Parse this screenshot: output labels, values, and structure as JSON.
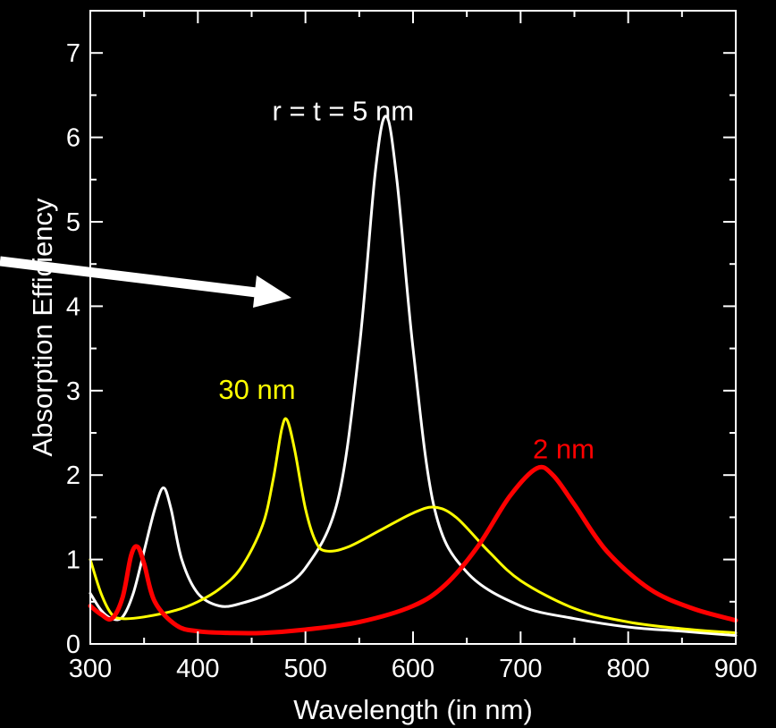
{
  "chart_data": {
    "type": "line",
    "xlabel": "Wavelength (in nm)",
    "ylabel": "Absorption Efficiency",
    "xlim": [
      300,
      900
    ],
    "ylim": [
      0,
      7.5
    ],
    "x_ticks": [
      300,
      400,
      500,
      600,
      700,
      800,
      900
    ],
    "x_tick_labels": [
      "300",
      "400",
      "500",
      "600",
      "700",
      "800",
      "900"
    ],
    "y_ticks": [
      0,
      1,
      2,
      3,
      4,
      5,
      6,
      7
    ],
    "y_tick_labels": [
      "0",
      "1",
      "2",
      "3",
      "4",
      "5",
      "6",
      "7"
    ],
    "grid": false,
    "background": "#000000",
    "annotations": [
      {
        "text": "r = t = 5 nm",
        "color": "#ffffff",
        "x": 535,
        "y": 6.2
      },
      {
        "text": "30 nm",
        "color": "#ffff00",
        "x": 455,
        "y": 2.9
      },
      {
        "text": "2 nm",
        "color": "#ff0000",
        "x": 740,
        "y": 2.2
      }
    ],
    "series": [
      {
        "color": "#ffffff",
        "x": [
          300,
          310,
          320,
          330,
          340,
          350,
          360,
          368,
          375,
          385,
          400,
          420,
          440,
          470,
          500,
          530,
          550,
          565,
          575,
          585,
          600,
          620,
          650,
          700,
          750,
          800,
          850,
          900
        ],
        "y": [
          0.6,
          0.4,
          0.3,
          0.32,
          0.6,
          1.1,
          1.6,
          1.85,
          1.6,
          1.0,
          0.6,
          0.45,
          0.48,
          0.62,
          0.9,
          1.7,
          3.5,
          5.6,
          6.25,
          5.5,
          3.5,
          1.6,
          0.85,
          0.45,
          0.3,
          0.2,
          0.15,
          0.1
        ]
      },
      {
        "color": "#ffff00",
        "x": [
          300,
          310,
          320,
          330,
          350,
          380,
          400,
          420,
          440,
          460,
          470,
          478,
          483,
          490,
          500,
          510,
          520,
          540,
          570,
          600,
          620,
          640,
          670,
          700,
          750,
          800,
          850,
          900
        ],
        "y": [
          1.0,
          0.6,
          0.35,
          0.3,
          0.32,
          0.4,
          0.5,
          0.65,
          0.9,
          1.4,
          1.95,
          2.55,
          2.65,
          2.3,
          1.6,
          1.2,
          1.1,
          1.15,
          1.35,
          1.55,
          1.62,
          1.5,
          1.1,
          0.75,
          0.42,
          0.26,
          0.18,
          0.13
        ]
      },
      {
        "color": "#ff0000",
        "x": [
          300,
          310,
          320,
          330,
          338,
          344,
          350,
          360,
          380,
          400,
          430,
          460,
          500,
          550,
          600,
          630,
          660,
          690,
          715,
          730,
          750,
          780,
          820,
          860,
          900
        ],
        "y": [
          0.45,
          0.35,
          0.3,
          0.55,
          1.05,
          1.15,
          0.95,
          0.5,
          0.22,
          0.15,
          0.13,
          0.13,
          0.17,
          0.26,
          0.45,
          0.7,
          1.15,
          1.75,
          2.08,
          2.0,
          1.65,
          1.1,
          0.65,
          0.42,
          0.28
        ]
      }
    ]
  }
}
